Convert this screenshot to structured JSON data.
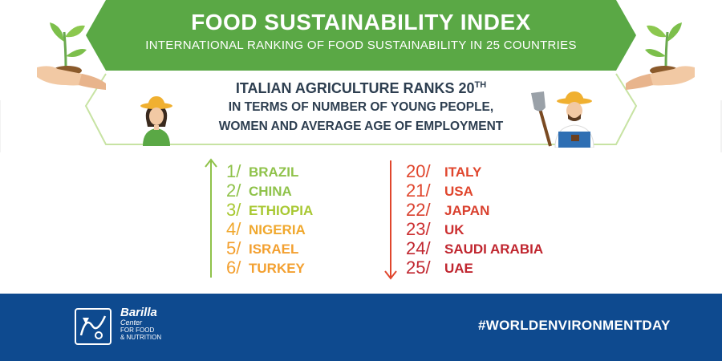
{
  "banner": {
    "title": "FOOD SUSTAINABILITY INDEX",
    "subtitle": "INTERNATIONAL RANKING OF FOOD SUSTAINABILITY IN 25 COUNTRIES",
    "color": "#5aa845"
  },
  "headline": {
    "title": "ITALIAN AGRICULTURE RANKS 20",
    "title_sup": "TH",
    "line1": "IN TERMS OF NUMBER OF YOUNG PEOPLE,",
    "line2": "WOMEN AND AVERAGE AGE OF EMPLOYMENT"
  },
  "top_ranks": [
    {
      "num": "1/",
      "name": "BRAZIL",
      "color": "#8fc24a"
    },
    {
      "num": "2/",
      "name": "CHINA",
      "color": "#8fc24a"
    },
    {
      "num": "3/",
      "name": "ETHIOPIA",
      "color": "#a8c832"
    },
    {
      "num": "4/",
      "name": "NIGERIA",
      "color": "#f0a82d"
    },
    {
      "num": "5/",
      "name": "ISRAEL",
      "color": "#f3a030"
    },
    {
      "num": "6/",
      "name": "TURKEY",
      "color": "#f3a030"
    }
  ],
  "bottom_ranks": [
    {
      "num": "20/",
      "name": "ITALY",
      "color": "#e0462d"
    },
    {
      "num": "21/",
      "name": "USA",
      "color": "#e0462d"
    },
    {
      "num": "22/",
      "name": "JAPAN",
      "color": "#d9402e"
    },
    {
      "num": "23/",
      "name": "UK",
      "color": "#cc2f30"
    },
    {
      "num": "24/",
      "name": "SAUDI ARABIA",
      "color": "#c0262f"
    },
    {
      "num": "25/",
      "name": "UAE",
      "color": "#c0262f"
    }
  ],
  "footer": {
    "brand": "Barilla",
    "brand_line2": "Center",
    "brand_line3": "FOR FOOD",
    "brand_line4": "& NUTRITION",
    "hashtag": "#WORLDENVIRONMENTDAY",
    "background": "#0e4a8f"
  },
  "icons": {
    "left_hand": "hand-with-sprout-icon",
    "right_hand": "hand-with-sprout-icon",
    "woman": "farmer-woman-icon",
    "man": "farmer-man-with-shovel-icon",
    "up_arrow": "arrow-up-icon",
    "down_arrow": "arrow-down-icon",
    "logo": "barilla-logo-icon"
  }
}
